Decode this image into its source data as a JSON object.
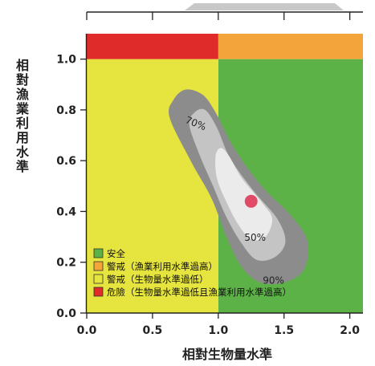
{
  "chart_data": {
    "type": "area",
    "title": "",
    "xlabel": "相對生物量水準",
    "ylabel": "相對漁業利用水準",
    "xlim": [
      0.0,
      2.1
    ],
    "ylim": [
      0.0,
      1.1
    ],
    "x_ticks": [
      "0.0",
      "0.5",
      "1.0",
      "1.5",
      "2.0"
    ],
    "y_ticks": [
      "0.0",
      "0.2",
      "0.4",
      "0.6",
      "0.8",
      "1.0"
    ],
    "zones": [
      {
        "name": "安全",
        "color": "#5cb247",
        "x": [
          1.0,
          2.1
        ],
        "y": [
          0.0,
          1.0
        ]
      },
      {
        "name": "警戒（漁業利用水準過高）",
        "color": "#f3a43b",
        "x": [
          1.0,
          2.1
        ],
        "y": [
          1.0,
          1.1
        ]
      },
      {
        "name": "警戒（生物量水準過低）",
        "color": "#e6e43e",
        "x": [
          0.0,
          1.0
        ],
        "y": [
          0.0,
          1.0
        ]
      },
      {
        "name": "危險（生物量水準過低且漁業利用水準過高）",
        "color": "#e02b2b",
        "x": [
          0.0,
          1.0
        ],
        "y": [
          1.0,
          1.1
        ]
      }
    ],
    "contours": [
      {
        "label": "90%",
        "color": "#8c8c8c",
        "points": [
          [
            0.63,
            0.77
          ],
          [
            0.66,
            0.84
          ],
          [
            0.75,
            0.88
          ],
          [
            0.88,
            0.86
          ],
          [
            0.98,
            0.79
          ],
          [
            1.12,
            0.65
          ],
          [
            1.33,
            0.5
          ],
          [
            1.56,
            0.38
          ],
          [
            1.68,
            0.28
          ],
          [
            1.65,
            0.17
          ],
          [
            1.5,
            0.12
          ],
          [
            1.32,
            0.12
          ],
          [
            1.18,
            0.18
          ],
          [
            1.07,
            0.29
          ],
          [
            0.95,
            0.45
          ],
          [
            0.79,
            0.6
          ]
        ]
      },
      {
        "label": "70%",
        "color": "#c4c4c4",
        "points": [
          [
            0.78,
            0.74
          ],
          [
            0.82,
            0.79
          ],
          [
            0.9,
            0.8
          ],
          [
            0.99,
            0.73
          ],
          [
            1.09,
            0.61
          ],
          [
            1.27,
            0.48
          ],
          [
            1.45,
            0.37
          ],
          [
            1.51,
            0.28
          ],
          [
            1.43,
            0.22
          ],
          [
            1.29,
            0.21
          ],
          [
            1.17,
            0.28
          ],
          [
            1.06,
            0.38
          ],
          [
            0.96,
            0.5
          ],
          [
            0.86,
            0.62
          ]
        ]
      },
      {
        "label": "50%",
        "color": "#ebebeb",
        "points": [
          [
            0.98,
            0.62
          ],
          [
            1.02,
            0.65
          ],
          [
            1.08,
            0.62
          ],
          [
            1.18,
            0.53
          ],
          [
            1.34,
            0.43
          ],
          [
            1.41,
            0.37
          ],
          [
            1.36,
            0.3
          ],
          [
            1.25,
            0.29
          ],
          [
            1.15,
            0.35
          ],
          [
            1.06,
            0.44
          ],
          [
            0.99,
            0.53
          ]
        ]
      }
    ],
    "point": {
      "x": 1.25,
      "y": 0.44,
      "color": "#e04a67"
    },
    "legend_position": "bottom-left"
  }
}
